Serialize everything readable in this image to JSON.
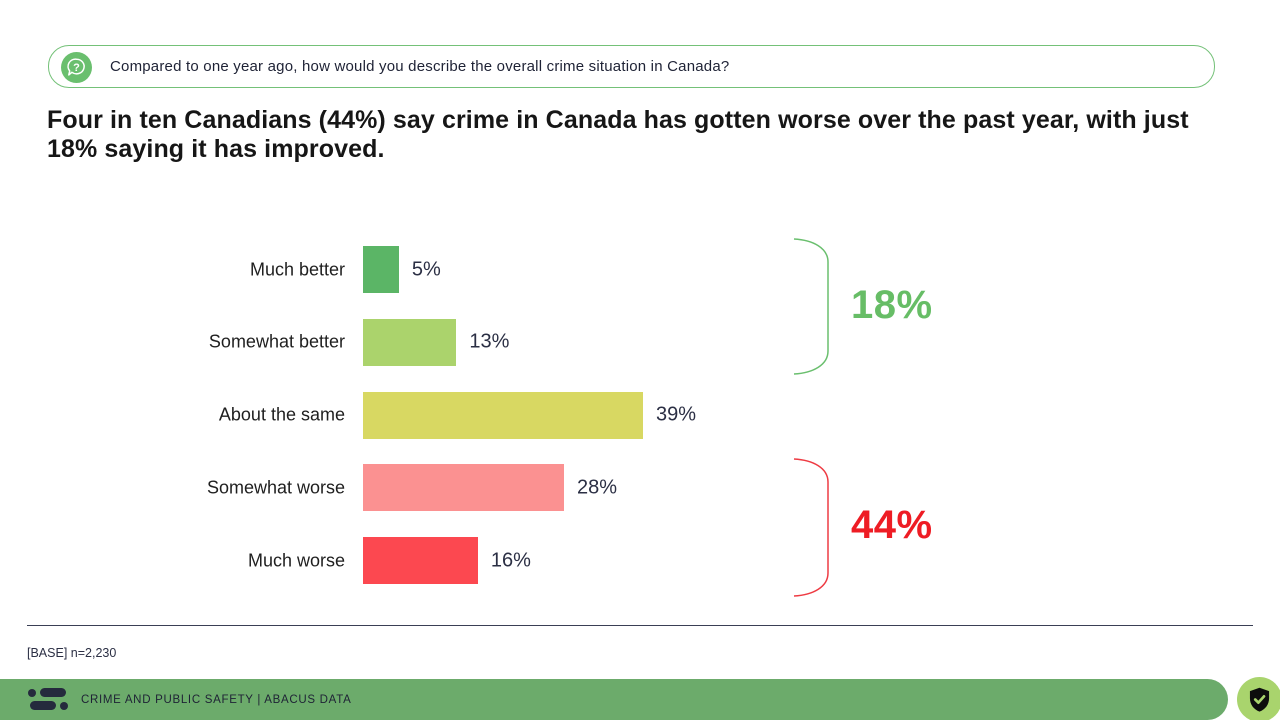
{
  "question": {
    "icon": "question-bubble-icon",
    "text": "Compared to one year ago, how would you describe the overall crime situation in Canada?",
    "border_color": "#74c178",
    "icon_color": "#6abf6e"
  },
  "headline": "Four in ten Canadians (44%) say crime in Canada has gotten worse over the past year, with just 18% saying it has improved.",
  "chart_data": {
    "type": "bar",
    "orientation": "horizontal",
    "title": "",
    "categories": [
      "Much better",
      "Somewhat better",
      "About the same",
      "Somewhat worse",
      "Much worse"
    ],
    "values": [
      5,
      13,
      39,
      28,
      16
    ],
    "value_labels": [
      "5%",
      "13%",
      "39%",
      "28%",
      "16%"
    ],
    "bar_colors": [
      "#5bb566",
      "#abd36c",
      "#d8d862",
      "#fb9191",
      "#fc4850"
    ],
    "xlim": [
      0,
      39
    ],
    "grid": false,
    "groups": [
      {
        "label": "18%",
        "color": "#67bd66",
        "bracket_color": "#6abf6e",
        "rows": [
          0,
          1
        ]
      },
      {
        "label": "44%",
        "color": "#ee1c24",
        "bracket_color": "#ee3b43",
        "rows": [
          3,
          4
        ]
      }
    ]
  },
  "base_note": "[BASE] n=2,230",
  "footer": {
    "text": "CRIME AND PUBLIC SAFETY | ABACUS DATA",
    "bar_color": "#6cab6b",
    "logo": "abacus-data-logo",
    "badge": "shield-check-icon",
    "badge_color": "#a9d46d"
  }
}
